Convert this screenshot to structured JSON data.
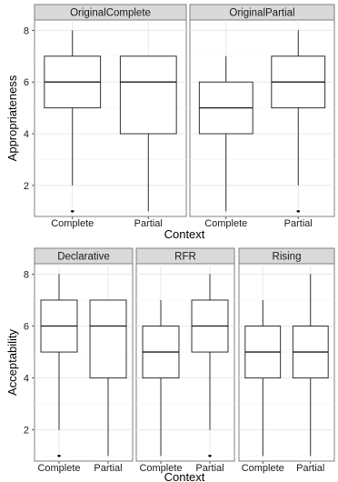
{
  "chart_data": [
    {
      "type": "boxplot",
      "ylabel": "Appropriateness",
      "xlabel": "Context",
      "ylim": [
        0.8,
        8.4
      ],
      "yticks": [
        2,
        4,
        6,
        8
      ],
      "categories": [
        "Complete",
        "Partial"
      ],
      "grid": true,
      "panels": [
        {
          "strip": "OriginalComplete",
          "boxes": [
            {
              "category": "Complete",
              "min": 2,
              "q1": 5,
              "median": 6,
              "q3": 7,
              "max": 8,
              "outliers": [
                1
              ]
            },
            {
              "category": "Partial",
              "min": 1,
              "q1": 4,
              "median": 6,
              "q3": 7,
              "max": 7,
              "outliers": []
            }
          ]
        },
        {
          "strip": "OriginalPartial",
          "boxes": [
            {
              "category": "Complete",
              "min": 1,
              "q1": 4,
              "median": 5,
              "q3": 6,
              "max": 7,
              "outliers": []
            },
            {
              "category": "Partial",
              "min": 2,
              "q1": 5,
              "median": 6,
              "q3": 7,
              "max": 8,
              "outliers": [
                1
              ]
            }
          ]
        }
      ]
    },
    {
      "type": "boxplot",
      "ylabel": "Acceptability",
      "xlabel": "Context",
      "ylim": [
        0.8,
        8.4
      ],
      "yticks": [
        2,
        4,
        6,
        8
      ],
      "categories": [
        "Complete",
        "Partial"
      ],
      "grid": true,
      "panels": [
        {
          "strip": "Declarative",
          "boxes": [
            {
              "category": "Complete",
              "min": 2,
              "q1": 5,
              "median": 6,
              "q3": 7,
              "max": 8,
              "outliers": [
                1
              ]
            },
            {
              "category": "Partial",
              "min": 1,
              "q1": 4,
              "median": 6,
              "q3": 7,
              "max": 7,
              "outliers": []
            }
          ]
        },
        {
          "strip": "RFR",
          "boxes": [
            {
              "category": "Complete",
              "min": 1,
              "q1": 4,
              "median": 5,
              "q3": 6,
              "max": 7,
              "outliers": []
            },
            {
              "category": "Partial",
              "min": 2,
              "q1": 5,
              "median": 6,
              "q3": 7,
              "max": 8,
              "outliers": [
                1
              ]
            }
          ]
        },
        {
          "strip": "Rising",
          "boxes": [
            {
              "category": "Complete",
              "min": 1,
              "q1": 4,
              "median": 5,
              "q3": 6,
              "max": 7,
              "outliers": []
            },
            {
              "category": "Partial",
              "min": 1,
              "q1": 4,
              "median": 5,
              "q3": 6,
              "max": 8,
              "outliers": []
            }
          ]
        }
      ]
    }
  ]
}
